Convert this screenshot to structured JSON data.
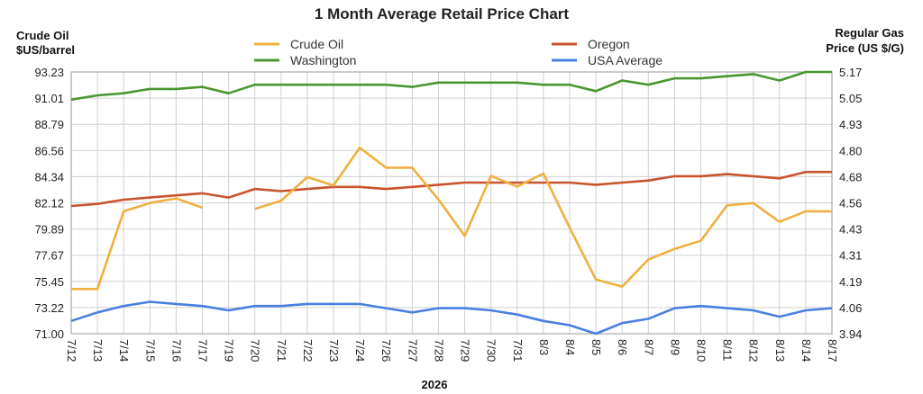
{
  "chart_data": {
    "type": "line",
    "title": "1 Month Average Retail Price Chart",
    "left_axis_title": [
      "Crude Oil",
      "$US/barrel"
    ],
    "right_axis_title": [
      "Regular Gas",
      "Price (US $/G)"
    ],
    "xlabel": "2026",
    "left_ticks": [
      "71.00",
      "73.22",
      "75.45",
      "77.67",
      "79.89",
      "82.12",
      "84.34",
      "86.56",
      "88.79",
      "91.01",
      "93.23"
    ],
    "right_ticks": [
      "3.94",
      "4.06",
      "4.19",
      "4.31",
      "4.43",
      "4.56",
      "4.68",
      "4.80",
      "4.93",
      "5.05",
      "5.17"
    ],
    "ylim_left": [
      71.0,
      93.23
    ],
    "ylim_right": [
      3.94,
      5.17
    ],
    "grid": true,
    "legend_position": "top",
    "categories": [
      "7/12",
      "7/13",
      "7/14",
      "7/15",
      "7/16",
      "7/17",
      "7/19",
      "7/20",
      "7/21",
      "7/22",
      "7/23",
      "7/24",
      "7/26",
      "7/27",
      "7/28",
      "7/29",
      "7/30",
      "7/31",
      "8/3",
      "8/4",
      "8/5",
      "8/6",
      "8/7",
      "8/9",
      "8/10",
      "8/11",
      "8/12",
      "8/13",
      "8/14",
      "8/17"
    ],
    "series": [
      {
        "name": "Crude Oil",
        "axis": "left",
        "color": "#f0b040",
        "values": [
          74.8,
          74.8,
          81.4,
          82.1,
          82.5,
          81.7,
          null,
          81.6,
          82.3,
          84.3,
          83.6,
          86.8,
          85.1,
          85.1,
          82.4,
          79.3,
          84.4,
          83.5,
          84.6,
          80.0,
          75.6,
          75.0,
          77.3,
          78.2,
          78.9,
          81.9,
          82.1,
          80.5,
          81.4,
          81.4
        ],
        "gap_after": [
          "7/17"
        ]
      },
      {
        "name": "Oregon",
        "axis": "right",
        "color": "#c8532e",
        "values": [
          4.54,
          4.55,
          4.57,
          4.58,
          4.59,
          4.6,
          4.58,
          4.62,
          4.61,
          4.62,
          4.63,
          4.63,
          4.62,
          4.63,
          4.64,
          4.65,
          4.65,
          4.65,
          4.65,
          4.65,
          4.64,
          4.65,
          4.66,
          4.68,
          4.68,
          4.69,
          4.68,
          4.67,
          4.7,
          4.7
        ]
      },
      {
        "name": "Washington",
        "axis": "right",
        "color": "#4a9630",
        "values": [
          5.04,
          5.06,
          5.07,
          5.09,
          5.09,
          5.1,
          5.07,
          5.11,
          5.11,
          5.11,
          5.11,
          5.11,
          5.11,
          5.1,
          5.12,
          5.12,
          5.12,
          5.12,
          5.11,
          5.11,
          5.08,
          5.13,
          5.11,
          5.14,
          5.14,
          5.15,
          5.16,
          5.13,
          5.17,
          5.17
        ]
      },
      {
        "name": "USA Average",
        "axis": "right",
        "color": "#4a7fe0",
        "values": [
          4.0,
          4.04,
          4.07,
          4.09,
          4.08,
          4.07,
          4.05,
          4.07,
          4.07,
          4.08,
          4.08,
          4.08,
          4.06,
          4.04,
          4.06,
          4.06,
          4.05,
          4.03,
          4.0,
          3.98,
          3.94,
          3.99,
          4.01,
          4.06,
          4.07,
          4.06,
          4.05,
          4.02,
          4.05,
          4.06
        ]
      }
    ]
  }
}
